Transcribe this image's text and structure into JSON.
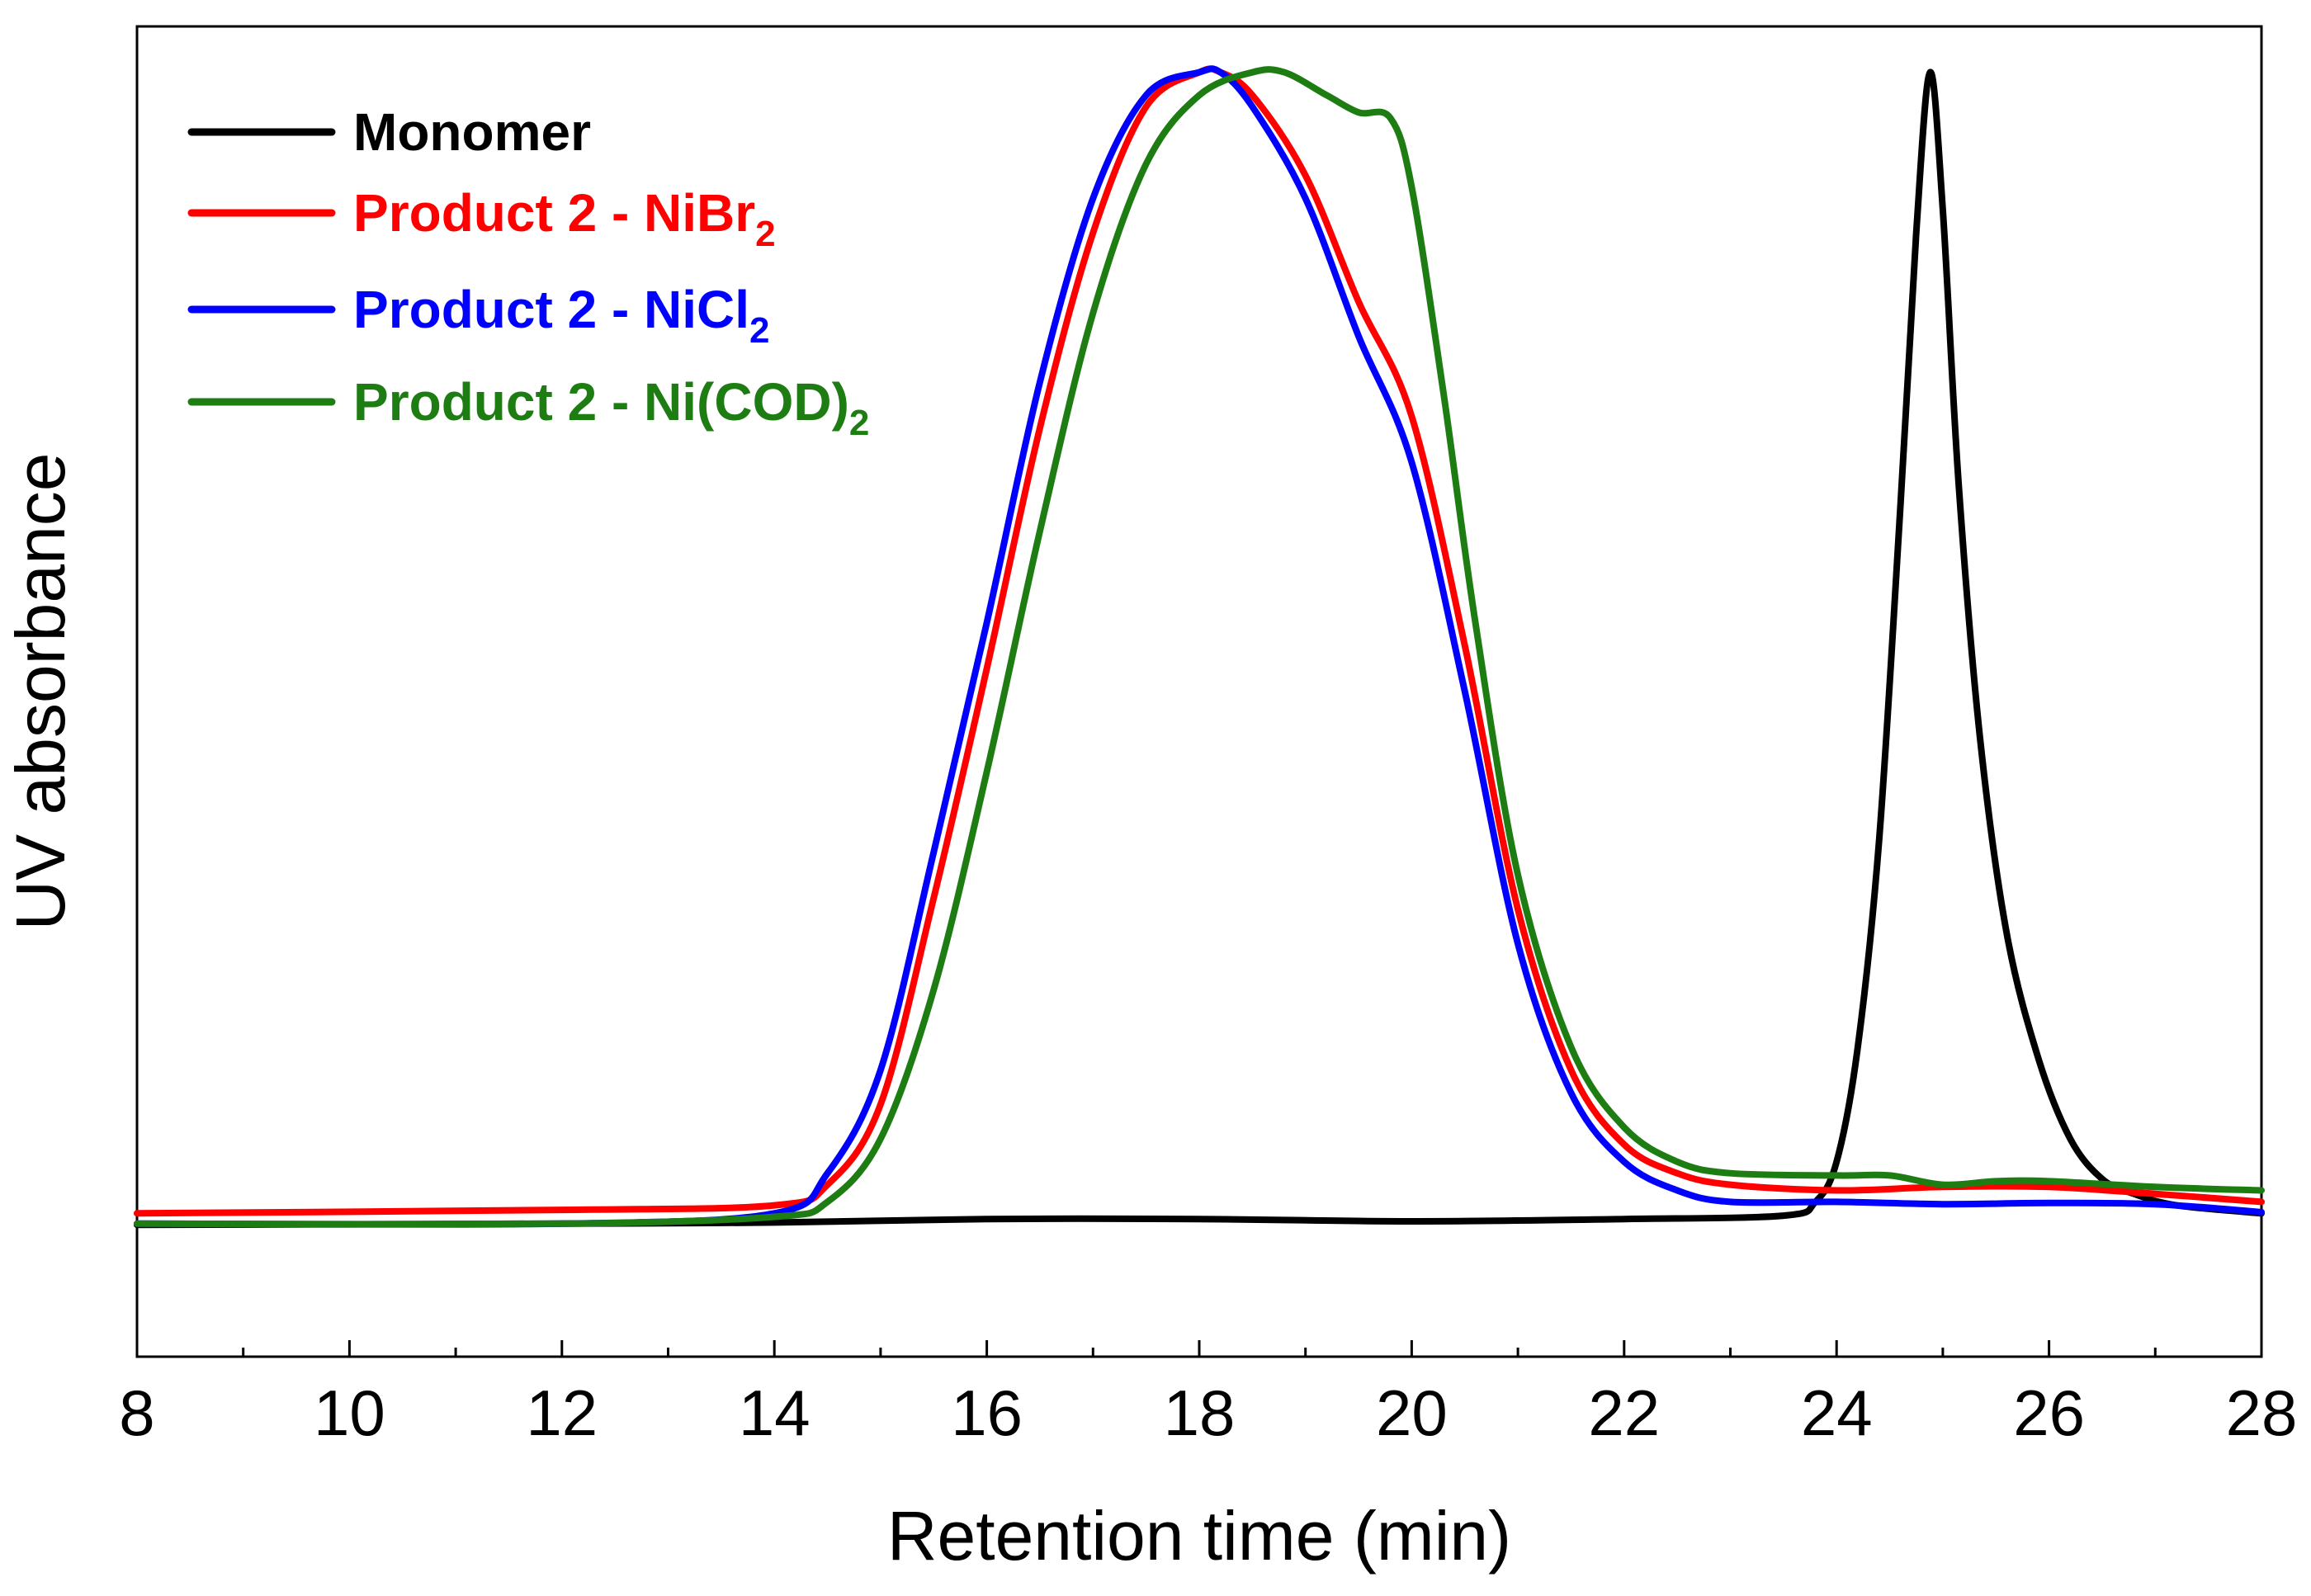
{
  "chart_data": {
    "type": "line",
    "title": "",
    "xlabel": "Retention time (min)",
    "ylabel": "UV absorbance",
    "xlim": [
      8,
      28
    ],
    "ylim": [
      -0.12,
      1.04
    ],
    "xticks": [
      "8",
      "10",
      "12",
      "14",
      "16",
      "18",
      "20",
      "22",
      "24",
      "26",
      "28"
    ],
    "grid": false,
    "legend_position": "top-left",
    "series": [
      {
        "name": "Monomer",
        "label_main": "Monomer",
        "label_sub": "",
        "label_tail": "",
        "color": "#000000",
        "x": [
          8,
          12,
          14,
          16,
          18,
          20,
          22,
          23.5,
          23.8,
          24.0,
          24.2,
          24.4,
          24.6,
          24.75,
          24.88,
          25.0,
          25.15,
          25.35,
          25.6,
          25.9,
          26.2,
          26.5,
          26.8,
          27.2,
          28
        ],
        "y": [
          -0.005,
          -0.004,
          -0.003,
          0.0,
          0.0,
          -0.002,
          0.0,
          0.003,
          0.015,
          0.05,
          0.15,
          0.33,
          0.62,
          0.86,
          1.0,
          0.88,
          0.64,
          0.42,
          0.25,
          0.14,
          0.07,
          0.035,
          0.022,
          0.012,
          0.005
        ]
      },
      {
        "name": "Product 2 - NiBr2",
        "label_main": "Product 2 - NiBr",
        "label_sub": "2",
        "label_tail": "",
        "color": "#ff0000",
        "x": [
          8,
          12,
          14,
          14.5,
          15.0,
          15.5,
          16.0,
          16.5,
          17.0,
          17.5,
          18.0,
          18.2,
          18.5,
          19.0,
          19.5,
          20.0,
          20.5,
          21.0,
          21.5,
          22.0,
          22.5,
          23.0,
          24.0,
          25.0,
          26.0,
          27.0,
          28
        ],
        "y": [
          0.005,
          0.008,
          0.012,
          0.03,
          0.1,
          0.28,
          0.48,
          0.69,
          0.86,
          0.97,
          1.0,
          1.0,
          0.98,
          0.91,
          0.8,
          0.7,
          0.5,
          0.27,
          0.13,
          0.065,
          0.04,
          0.03,
          0.025,
          0.028,
          0.028,
          0.022,
          0.015
        ]
      },
      {
        "name": "Product 2 - NiCl2",
        "label_main": "Product 2 - NiCl",
        "label_sub": "2",
        "label_tail": "",
        "color": "#0000ff",
        "x": [
          8,
          12,
          14,
          14.5,
          15.0,
          15.5,
          16.0,
          16.5,
          17.0,
          17.5,
          18.0,
          18.2,
          18.5,
          19.0,
          19.5,
          20.0,
          20.5,
          21.0,
          21.5,
          22.0,
          22.5,
          23.0,
          24.0,
          25.0,
          26.0,
          27.0,
          28
        ],
        "y": [
          -0.004,
          -0.004,
          0.005,
          0.04,
          0.13,
          0.32,
          0.52,
          0.73,
          0.89,
          0.98,
          1.0,
          1.0,
          0.97,
          0.89,
          0.77,
          0.66,
          0.46,
          0.24,
          0.11,
          0.05,
          0.025,
          0.015,
          0.015,
          0.013,
          0.014,
          0.013,
          0.006
        ]
      },
      {
        "name": "Product 2 - Ni(COD)2",
        "label_main": "Product 2 - Ni(COD)",
        "label_sub": "2",
        "label_tail": "",
        "color": "#1e7d12",
        "x": [
          8,
          12,
          14,
          14.5,
          15.0,
          15.5,
          16.0,
          16.5,
          17.0,
          17.5,
          18.0,
          18.5,
          18.8,
          19.2,
          19.5,
          19.8,
          20.0,
          20.3,
          20.6,
          21.0,
          21.5,
          22.0,
          22.5,
          23.0,
          24.0,
          24.5,
          25.0,
          25.5,
          26.0,
          27.0,
          28
        ],
        "y": [
          -0.004,
          -0.004,
          0.002,
          0.015,
          0.07,
          0.2,
          0.39,
          0.6,
          0.79,
          0.92,
          0.98,
          1.0,
          1.0,
          0.98,
          0.965,
          0.96,
          0.9,
          0.72,
          0.52,
          0.3,
          0.15,
          0.08,
          0.05,
          0.04,
          0.038,
          0.038,
          0.03,
          0.033,
          0.033,
          0.028,
          0.025
        ]
      }
    ]
  }
}
